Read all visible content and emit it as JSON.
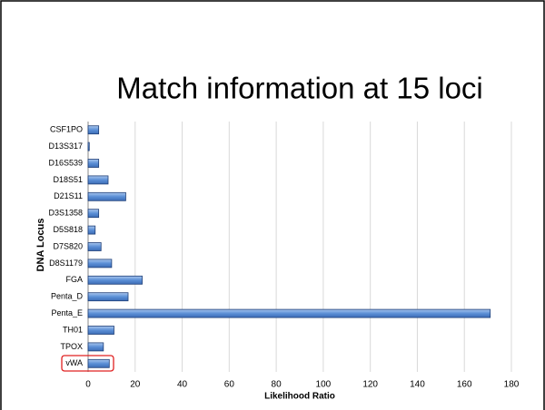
{
  "chart_data": {
    "type": "bar",
    "orientation": "horizontal",
    "title": "Match information at 15 loci",
    "x_label": "Likelihood Ratio",
    "y_label": "DNA Locus",
    "categories": [
      "CSF1PO",
      "D13S317",
      "D16S539",
      "D18S51",
      "D21S11",
      "D3S1358",
      "D5S818",
      "D7S820",
      "D8S1179",
      "FGA",
      "Penta_D",
      "Penta_E",
      "TH01",
      "TPOX",
      "vWA"
    ],
    "values": [
      4.5,
      0.5,
      4.5,
      8.5,
      16,
      4.5,
      3,
      5.5,
      10,
      23,
      17,
      171,
      11,
      6.5,
      9
    ],
    "color": "#5b8fd6",
    "xlim": [
      0,
      180
    ],
    "xticks": [
      0,
      20,
      40,
      60,
      80,
      100,
      120,
      140,
      160,
      180
    ],
    "grid": true
  }
}
